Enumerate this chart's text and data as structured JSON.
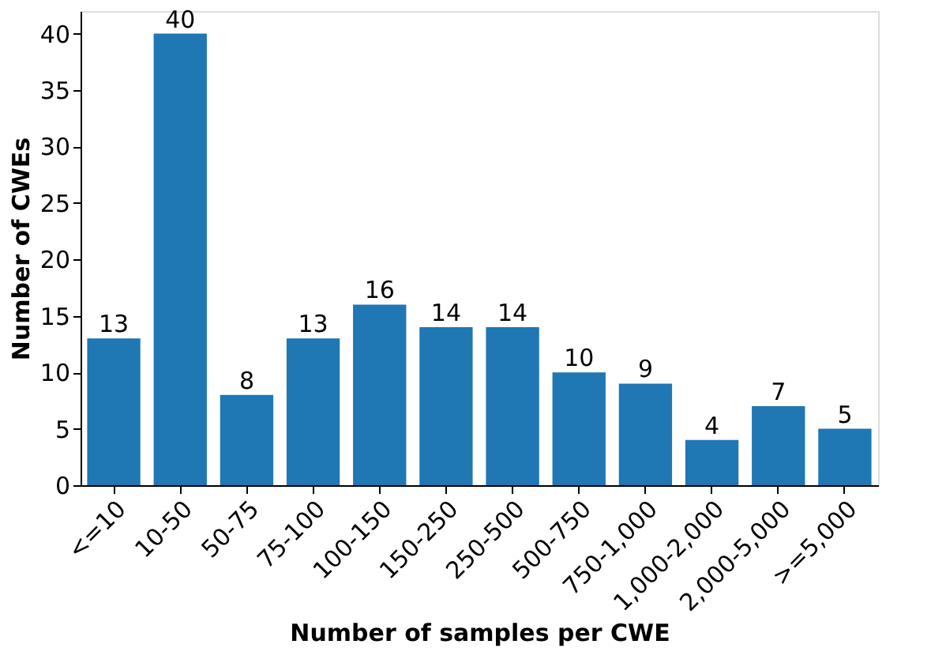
{
  "chart_data": {
    "type": "bar",
    "xlabel": "Number of samples per CWE",
    "ylabel": "Number of CWEs",
    "categories": [
      "<=10",
      "10-50",
      "50-75",
      "75-100",
      "100-150",
      "150-250",
      "250-500",
      "500-750",
      "750-1,000",
      "1,000-2,000",
      "2,000-5,000",
      ">=5,000"
    ],
    "values": [
      13,
      40,
      8,
      13,
      16,
      14,
      14,
      10,
      9,
      4,
      7,
      5
    ],
    "color": "#1f77b4",
    "ylim": [
      0,
      42
    ],
    "yticks": [
      0,
      5,
      10,
      15,
      20,
      25,
      30,
      35,
      40
    ],
    "grid": false,
    "data_labels": true
  }
}
